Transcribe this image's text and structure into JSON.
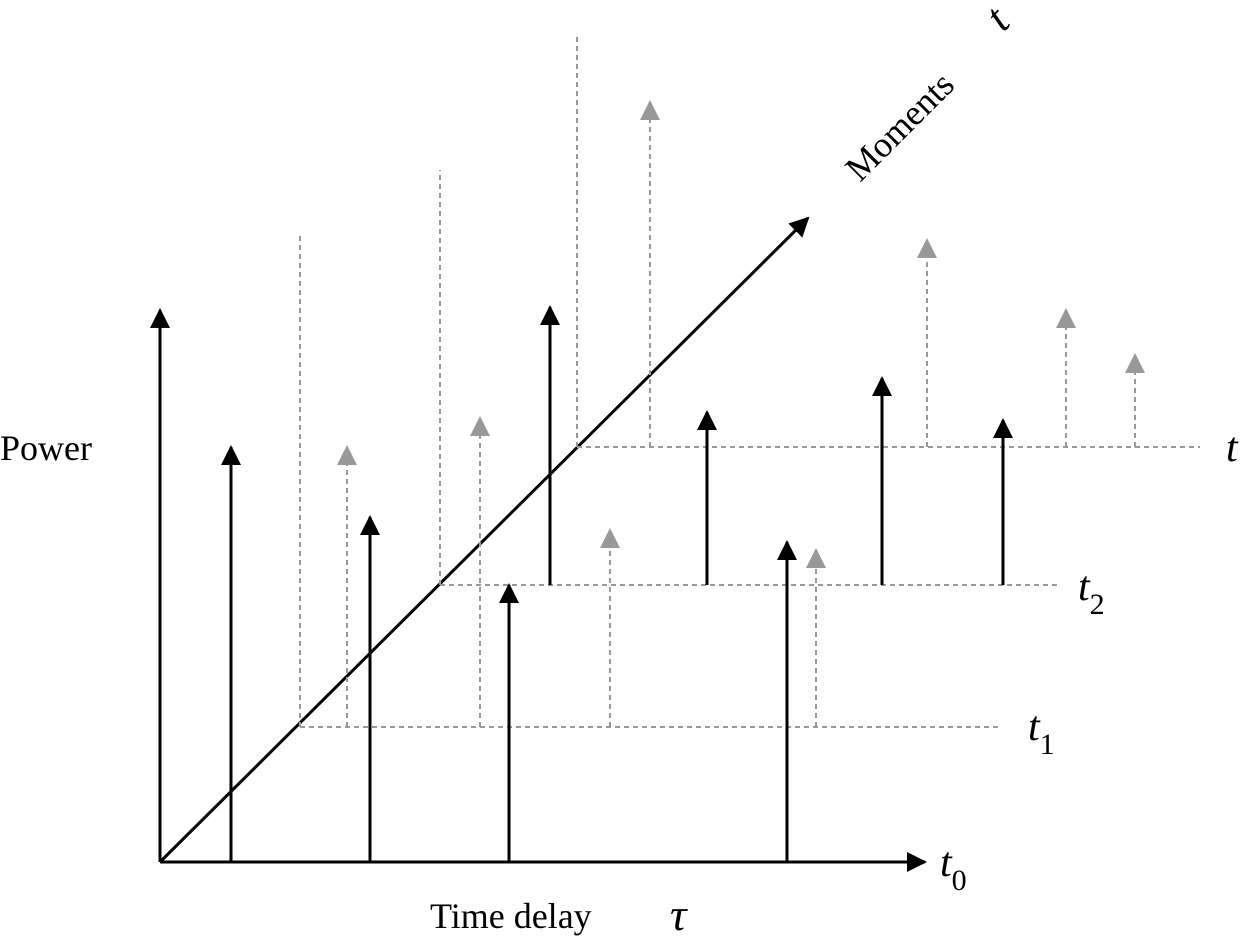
{
  "labels": {
    "power": "Power",
    "time_delay": "Time delay",
    "tau": "τ",
    "moments": "Moments",
    "t": "t",
    "t0_base": "t",
    "t0_sub": "0",
    "t1_base": "t",
    "t1_sub": "1",
    "t2_base": "t",
    "t2_sub": "2"
  },
  "colors": {
    "solid": "#000000",
    "dashed": "#999999"
  }
}
